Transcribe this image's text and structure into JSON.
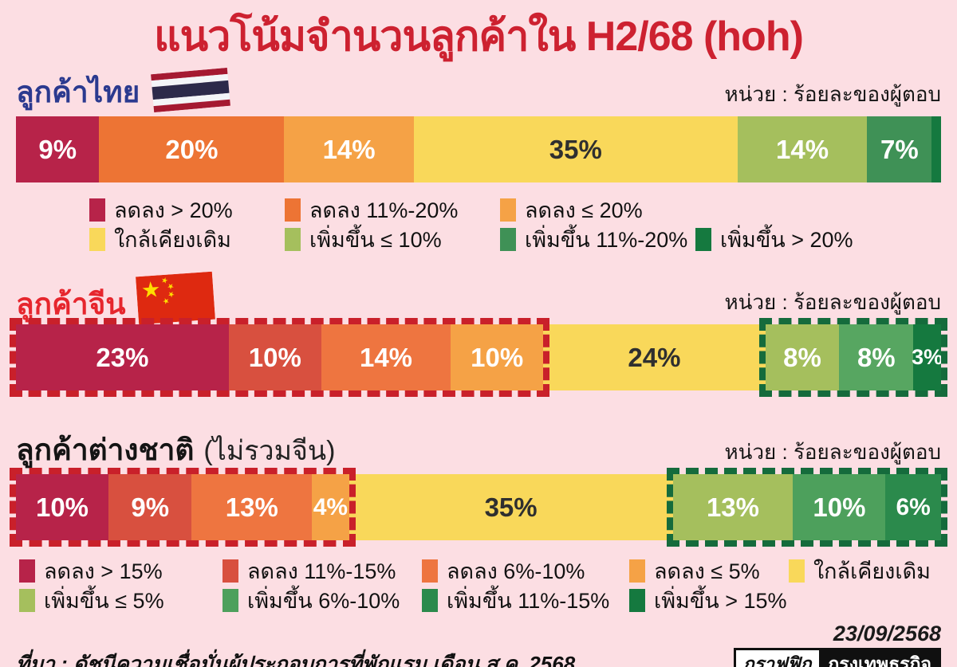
{
  "title": "แนวโน้มจำนวนลูกค้าใน H2/68 (hoh)",
  "chart_data": {
    "type": "bar",
    "subtype": "stacked-horizontal-percent",
    "unit": "หน่วย : ร้อยละของผู้ตอบ",
    "dash_red": "#c9202a",
    "dash_green": "#156b3c",
    "charts": [
      {
        "name": "ลูกค้าไทย",
        "name_suffix": "",
        "flag": "thailand",
        "groups": [
          {
            "dash": null,
            "segments": [
              {
                "label": "9%",
                "value": 9,
                "color": "#b72349",
                "text_color": "#ffffff"
              },
              {
                "label": "20%",
                "value": 20,
                "color": "#ed7434",
                "text_color": "#ffffff"
              },
              {
                "label": "14%",
                "value": 14,
                "color": "#f5a246",
                "text_color": "#ffffff"
              },
              {
                "label": "35%",
                "value": 35,
                "color": "#f9d85a",
                "text_color": "#2f2f2f"
              },
              {
                "label": "14%",
                "value": 14,
                "color": "#a5bf5d",
                "text_color": "#ffffff"
              },
              {
                "label": "7%",
                "value": 7,
                "color": "#3f9156",
                "text_color": "#ffffff"
              },
              {
                "label": "",
                "value": 1,
                "color": "#15793f",
                "text_color": "#ffffff"
              }
            ]
          }
        ],
        "legend_rows": [
          [
            {
              "label": "ลดลง > 20%",
              "color": "#b72349"
            },
            {
              "label": "ลดลง 11%-20%",
              "color": "#ed7434"
            },
            {
              "label": "ลดลง ≤  20%",
              "color": "#f5a246"
            }
          ],
          [
            {
              "label": "ใกล้เคียงเดิม",
              "color": "#f9d85a"
            },
            {
              "label": "เพิ่มขึ้น ≤ 10%",
              "color": "#a5bf5d"
            },
            {
              "label": "เพิ่มขึ้น 11%-20%",
              "color": "#3f9156"
            },
            {
              "label": "เพิ่มขึ้น > 20%",
              "color": "#15793f"
            }
          ]
        ]
      },
      {
        "name": "ลูกค้าจีน",
        "name_suffix": "",
        "flag": "china",
        "groups": [
          {
            "dash": "#c9202a",
            "segments": [
              {
                "label": "23%",
                "value": 23,
                "color": "#b72349",
                "text_color": "#ffffff"
              },
              {
                "label": "10%",
                "value": 10,
                "color": "#d8503f",
                "text_color": "#ffffff"
              },
              {
                "label": "14%",
                "value": 14,
                "color": "#ee7540",
                "text_color": "#ffffff"
              },
              {
                "label": "10%",
                "value": 10,
                "color": "#f5a246",
                "text_color": "#ffffff"
              }
            ]
          },
          {
            "dash": null,
            "segments": [
              {
                "label": "24%",
                "value": 24,
                "color": "#f9d85a",
                "text_color": "#2f2f2f"
              }
            ]
          },
          {
            "dash": "#156b3c",
            "segments": [
              {
                "label": "8%",
                "value": 8,
                "color": "#a5bf5d",
                "text_color": "#ffffff"
              },
              {
                "label": "8%",
                "value": 8,
                "color": "#57a661",
                "text_color": "#ffffff"
              },
              {
                "label": "3%",
                "value": 3,
                "color": "#15793f",
                "text_color": "#ffffff"
              }
            ]
          }
        ],
        "legend_rows": []
      },
      {
        "name": "ลูกค้าต่างชาติ",
        "name_suffix": "(ไม่รวมจีน)",
        "flag": "none",
        "groups": [
          {
            "dash": "#c9202a",
            "segments": [
              {
                "label": "10%",
                "value": 10,
                "color": "#b72349",
                "text_color": "#ffffff"
              },
              {
                "label": "9%",
                "value": 9,
                "color": "#d8503f",
                "text_color": "#ffffff"
              },
              {
                "label": "13%",
                "value": 13,
                "color": "#ee7540",
                "text_color": "#ffffff"
              },
              {
                "label": "4%",
                "value": 4,
                "color": "#f5a246",
                "text_color": "#ffffff"
              }
            ]
          },
          {
            "dash": null,
            "segments": [
              {
                "label": "35%",
                "value": 35,
                "color": "#f9d85a",
                "text_color": "#2f2f2f"
              }
            ]
          },
          {
            "dash": "#156b3c",
            "segments": [
              {
                "label": "13%",
                "value": 13,
                "color": "#a5bf5d",
                "text_color": "#ffffff"
              },
              {
                "label": "10%",
                "value": 10,
                "color": "#4da05c",
                "text_color": "#ffffff"
              },
              {
                "label": "6%",
                "value": 6,
                "color": "#2b8a4c",
                "text_color": "#ffffff"
              }
            ]
          }
        ],
        "legend_rows": [
          [
            {
              "label": "ลดลง > 15%",
              "color": "#b72349"
            },
            {
              "label": "ลดลง 11%-15%",
              "color": "#d8503f"
            },
            {
              "label": "ลดลง 6%-10%",
              "color": "#ee7540"
            },
            {
              "label": "ลดลง ≤ 5%",
              "color": "#f5a246"
            },
            {
              "label": "ใกล้เคียงเดิม",
              "color": "#f9d85a"
            }
          ],
          [
            {
              "label": "เพิ่มขึ้น ≤ 5%",
              "color": "#a5bf5d"
            },
            {
              "label": "เพิ่มขึ้น 6%-10%",
              "color": "#4da05c"
            },
            {
              "label": "เพิ่มขึ้น 11%-15%",
              "color": "#2b8a4c"
            },
            {
              "label": "เพิ่มขึ้น > 15%",
              "color": "#15793f"
            }
          ]
        ]
      }
    ]
  },
  "footer": {
    "date": "23/09/2568",
    "source": "ที่มา :  ดัชนีความเชื่อมั่นผู้ประกอบการที่พักแรม เดือน ส.ค. 2568",
    "logo_left": "กราฟฟิก",
    "logo_right": "กรุงเทพธุรกิจ"
  }
}
